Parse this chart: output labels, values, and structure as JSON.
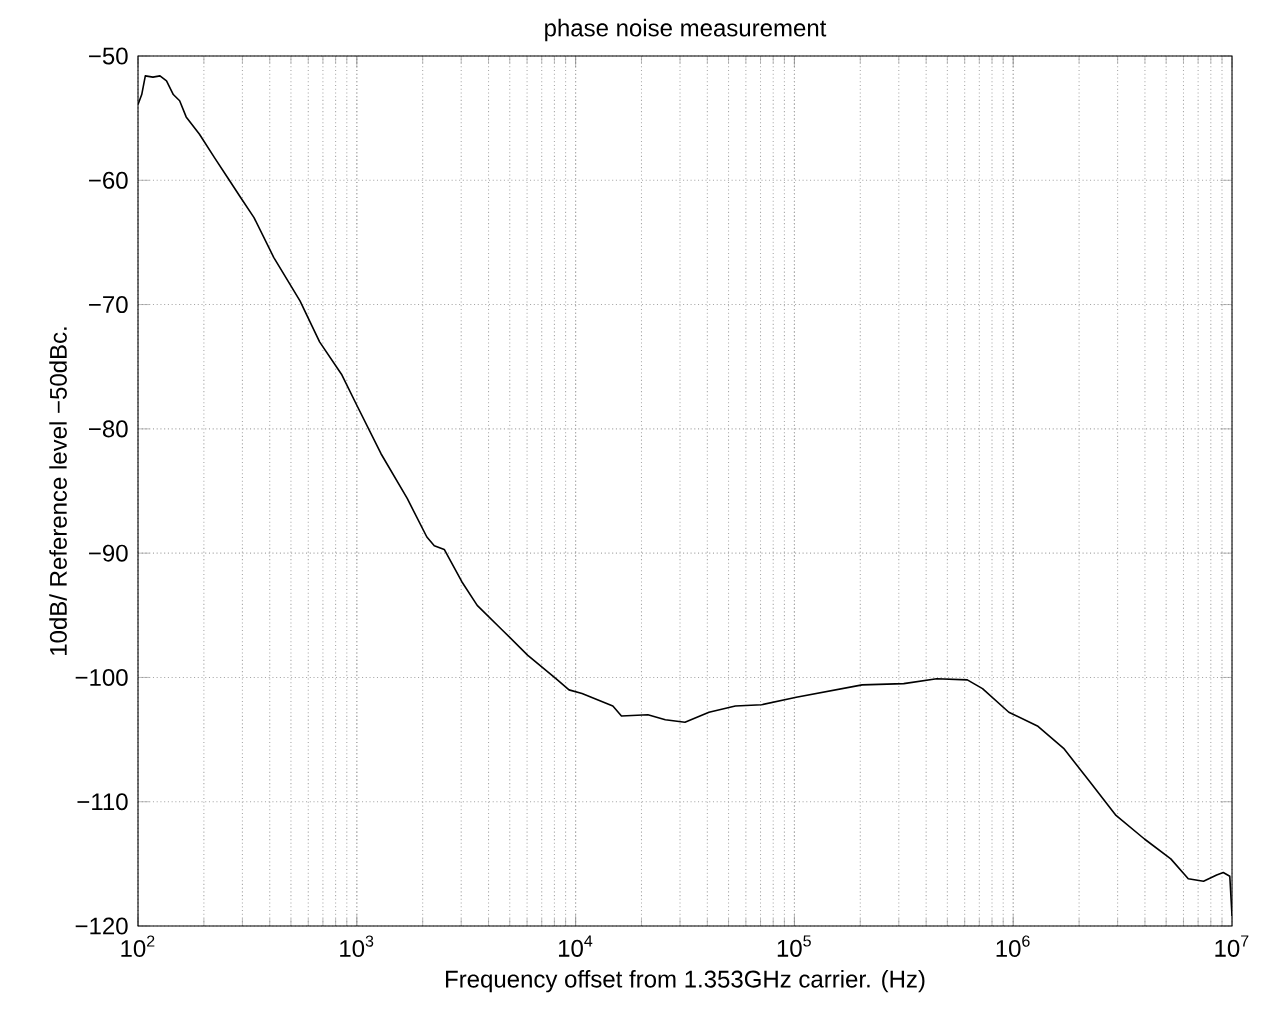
{
  "chart_data": {
    "type": "line",
    "title": "phase noise measurement",
    "xlabel": "Frequency offset from 1.353GHz carrier. (Hz)",
    "ylabel": "10dB/    Reference level  −50dBc.",
    "log": "x",
    "grid": true,
    "line_style": "solid",
    "color": "#000000",
    "xlim": [
      100,
      10000000
    ],
    "ylim": [
      -120,
      -50
    ],
    "xticks": [
      {
        "value": 100,
        "label": "10$^{2}$"
      },
      {
        "value": 1000,
        "label": "10$^{3}$"
      },
      {
        "value": 10000,
        "label": "10$^{4}$"
      },
      {
        "value": 100000,
        "label": "10$^{5}$"
      },
      {
        "value": 1000000,
        "label": "10$^{6}$"
      },
      {
        "value": 10000000,
        "label": "10$^{7}$"
      }
    ],
    "yticks": [
      {
        "value": -120,
        "label": "−120"
      },
      {
        "value": -110,
        "label": "−110"
      },
      {
        "value": -100,
        "label": "−100"
      },
      {
        "value": -90,
        "label": "−90"
      },
      {
        "value": -80,
        "label": "−80"
      },
      {
        "value": -70,
        "label": "−70"
      },
      {
        "value": -60,
        "label": "−60"
      },
      {
        "value": -50,
        "label": "−50"
      }
    ],
    "x": [
      100,
      104,
      108,
      117,
      126,
      135,
      145,
      155,
      166,
      191,
      224,
      257,
      295,
      339,
      417,
      550,
      676,
      851,
      1000,
      1290,
      1700,
      2090,
      2260,
      2510,
      3020,
      3550,
      4570,
      6030,
      8130,
      9330,
      10700,
      14800,
      16200,
      21400,
      25700,
      31600,
      40700,
      53700,
      70800,
      102000,
      204000,
      316000,
      447000,
      617000,
      724000,
      955000,
      1290000,
      1700000,
      2240000,
      2950000,
      3980000,
      5250000,
      6310000,
      7410000,
      8510000,
      9120000,
      9770000,
      10000000
    ],
    "values": [
      -53.9,
      -53.1,
      -51.6,
      -51.7,
      -51.6,
      -52.0,
      -53.1,
      -53.6,
      -54.9,
      -56.3,
      -58.2,
      -59.8,
      -61.4,
      -63.0,
      -66.2,
      -69.7,
      -73.0,
      -75.6,
      -78.1,
      -82.0,
      -85.6,
      -88.7,
      -89.4,
      -89.7,
      -92.3,
      -94.2,
      -96.1,
      -98.2,
      -100.1,
      -101.0,
      -101.3,
      -102.3,
      -103.1,
      -103.0,
      -103.4,
      -103.6,
      -102.8,
      -102.3,
      -102.2,
      -101.6,
      -100.6,
      -100.5,
      -100.1,
      -100.2,
      -100.9,
      -102.8,
      -103.9,
      -105.7,
      -108.4,
      -111.1,
      -113.0,
      -114.6,
      -116.2,
      -116.4,
      -115.9,
      -115.7,
      -116.0,
      -119.2
    ]
  }
}
